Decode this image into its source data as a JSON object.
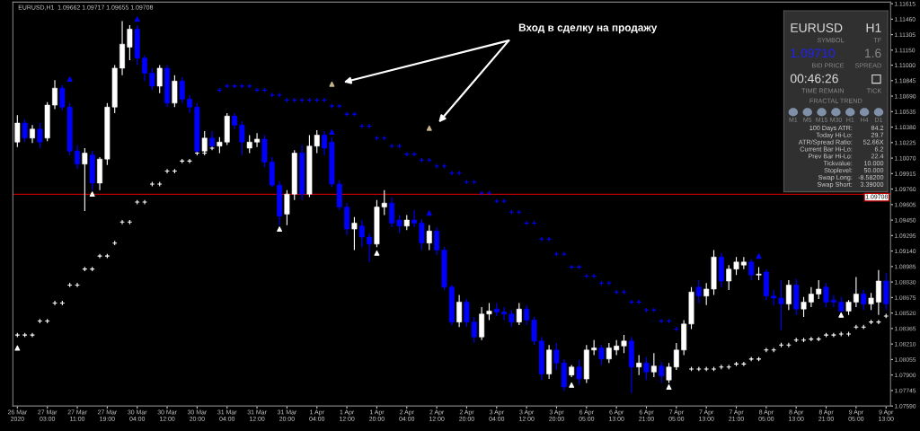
{
  "chart_data": [
    {
      "type": "candlestick",
      "title": "EURUSD,H1  1.09662 1.09717 1.09655 1.09708",
      "categories": [
        "26 Mar 2020",
        null,
        null,
        null,
        "27 Mar 03:00",
        null,
        null,
        null,
        "27 Mar 11:00",
        null,
        null,
        null,
        "27 Mar 19:00",
        null,
        null,
        null,
        "30 Mar 04:00",
        null,
        null,
        null,
        "30 Mar 12:00",
        null,
        null,
        null,
        "30 Mar 20:00",
        null,
        null,
        null,
        "31 Mar 04:00",
        null,
        null,
        null,
        "31 Mar 12:00",
        null,
        null,
        null,
        "31 Mar 20:00",
        null,
        null,
        null,
        "1 Apr 04:00",
        null,
        null,
        null,
        "1 Apr 12:00",
        null,
        null,
        null,
        "1 Apr 20:00",
        null,
        null,
        null,
        "2 Apr 04:00",
        null,
        null,
        null,
        "2 Apr 12:00",
        null,
        null,
        null,
        "2 Apr 20:00",
        null,
        null,
        null,
        "3 Apr 04:00",
        null,
        null,
        null,
        "3 Apr 12:00",
        null,
        null,
        null,
        "3 Apr 20:00",
        null,
        null,
        null,
        "6 Apr 05:00",
        null,
        null,
        null,
        "6 Apr 13:00",
        null,
        null,
        null,
        "6 Apr 21:00",
        null,
        null,
        null,
        "7 Apr 05:00",
        null,
        null,
        null,
        "7 Apr 13:00",
        null,
        null,
        null,
        "7 Apr 21:00",
        null,
        null,
        null,
        "8 Apr 05:00",
        null,
        null,
        null,
        "8 Apr 13:00",
        null,
        null,
        null,
        "8 Apr 21:00",
        null,
        null,
        null,
        "9 Apr 05:00",
        null,
        null,
        null,
        "9 Apr 13:00"
      ],
      "ohlc": [
        [
          1.1023,
          1.105,
          1.1018,
          1.1042
        ],
        [
          1.1042,
          1.1046,
          1.1023,
          1.1027
        ],
        [
          1.1027,
          1.104,
          1.1022,
          1.1036
        ],
        [
          1.1036,
          1.1042,
          1.1017,
          1.1023
        ],
        [
          1.1027,
          1.1063,
          1.1024,
          1.106
        ],
        [
          1.106,
          1.1085,
          1.1056,
          1.1077
        ],
        [
          1.1077,
          1.108,
          1.1055,
          1.1058
        ],
        [
          1.1058,
          1.1062,
          1.101,
          1.1014
        ],
        [
          1.1014,
          1.102,
          1.0996,
          1.1001
        ],
        [
          1.1001,
          1.1017,
          1.0954,
          1.1012
        ],
        [
          1.101,
          1.1014,
          1.0975,
          1.0982
        ],
        [
          1.0982,
          1.1008,
          1.0975,
          1.1006
        ],
        [
          1.1006,
          1.1062,
          1.1,
          1.1058
        ],
        [
          1.1058,
          1.11,
          1.1052,
          1.1097
        ],
        [
          1.1097,
          1.1144,
          1.109,
          1.1121
        ],
        [
          1.1118,
          1.114,
          1.1105,
          1.1136
        ],
        [
          1.1136,
          1.114,
          1.11,
          1.1107
        ],
        [
          1.1107,
          1.111,
          1.1084,
          1.1092
        ],
        [
          1.1092,
          1.1097,
          1.1075,
          1.1079
        ],
        [
          1.1079,
          1.11,
          1.1072,
          1.1097
        ],
        [
          1.1097,
          1.11,
          1.1058,
          1.1062
        ],
        [
          1.1062,
          1.109,
          1.1058,
          1.1084
        ],
        [
          1.1084,
          1.1088,
          1.1062,
          1.1066
        ],
        [
          1.1066,
          1.107,
          1.1052,
          1.1058
        ],
        [
          1.1058,
          1.1062,
          1.1013,
          1.1014
        ],
        [
          1.1014,
          1.1034,
          1.1013,
          1.1027
        ],
        [
          1.1027,
          1.1034,
          1.1018,
          1.1019
        ],
        [
          1.1019,
          1.1028,
          1.1012,
          1.1023
        ],
        [
          1.1023,
          1.1052,
          1.102,
          1.1049
        ],
        [
          1.1049,
          1.1052,
          1.1036,
          1.104
        ],
        [
          1.104,
          1.1044,
          1.101,
          1.1023
        ],
        [
          1.1017,
          1.103,
          1.1012,
          1.1023
        ],
        [
          1.1023,
          1.1032,
          1.1018,
          1.1026
        ],
        [
          1.1026,
          1.103,
          1.0998,
          1.1003
        ],
        [
          1.1003,
          1.1008,
          1.0978,
          1.098
        ],
        [
          1.098,
          1.0984,
          1.094,
          1.0949
        ],
        [
          1.0951,
          1.0975,
          1.094,
          1.0971
        ],
        [
          1.0971,
          1.1015,
          1.0965,
          1.1012
        ],
        [
          1.1012,
          1.102,
          1.0965,
          1.0971
        ],
        [
          1.0971,
          1.103,
          1.0968,
          1.1019
        ],
        [
          1.1019,
          1.1035,
          1.1012,
          1.103
        ],
        [
          1.103,
          1.1034,
          1.101,
          1.1017
        ],
        [
          1.1023,
          1.1028,
          1.0978,
          1.0981
        ],
        [
          1.0981,
          1.0985,
          1.0955,
          1.0958
        ],
        [
          1.0958,
          1.0962,
          1.093,
          1.0936
        ],
        [
          1.0936,
          1.0948,
          1.0915,
          1.0942
        ],
        [
          1.0939,
          1.0945,
          1.0918,
          1.0928
        ],
        [
          1.0928,
          1.0932,
          1.0903,
          1.0921
        ],
        [
          1.0921,
          1.0965,
          1.0918,
          1.0958
        ],
        [
          1.0958,
          1.0975,
          1.095,
          1.0962
        ],
        [
          1.0962,
          1.0968,
          1.0938,
          1.0942
        ],
        [
          1.0945,
          1.095,
          1.0932,
          1.0939
        ],
        [
          1.0939,
          1.095,
          1.0935,
          1.0945
        ],
        [
          1.0945,
          1.0955,
          1.0938,
          1.0942
        ],
        [
          1.0942,
          1.0946,
          1.0915,
          1.0922
        ],
        [
          1.0922,
          1.094,
          1.0915,
          1.0934
        ],
        [
          1.0934,
          1.0938,
          1.091,
          1.0915
        ],
        [
          1.0915,
          1.0918,
          1.0875,
          1.0878
        ],
        [
          1.0878,
          1.088,
          1.084,
          1.0843
        ],
        [
          1.0843,
          1.087,
          1.0838,
          1.0863
        ],
        [
          1.0863,
          1.0866,
          1.0838,
          1.0843
        ],
        [
          1.0843,
          1.0848,
          1.0822,
          1.0828
        ],
        [
          1.0828,
          1.0858,
          1.0825,
          1.0851
        ],
        [
          1.0851,
          1.0862,
          1.0845,
          1.0854
        ],
        [
          1.0856,
          1.0862,
          1.0849,
          1.0853
        ],
        [
          1.0853,
          1.0858,
          1.0845,
          1.0851
        ],
        [
          1.0851,
          1.0855,
          1.0838,
          1.0843
        ],
        [
          1.0843,
          1.0862,
          1.084,
          1.0856
        ],
        [
          1.0856,
          1.086,
          1.084,
          1.0845
        ],
        [
          1.0845,
          1.0848,
          1.082,
          1.0824
        ],
        [
          1.0824,
          1.0828,
          1.0785,
          1.0791
        ],
        [
          1.0791,
          1.082,
          1.0786,
          1.0815
        ],
        [
          1.0815,
          1.0822,
          1.0795,
          1.0802
        ],
        [
          1.0802,
          1.0806,
          1.0774,
          1.0778
        ],
        [
          1.079,
          1.08,
          1.0788,
          1.0798
        ],
        [
          1.0798,
          1.0805,
          1.078,
          1.0786
        ],
        [
          1.0786,
          1.082,
          1.0782,
          1.0815
        ],
        [
          1.0815,
          1.0825,
          1.081,
          1.0817
        ],
        [
          1.0817,
          1.082,
          1.08,
          1.0806
        ],
        [
          1.0806,
          1.0822,
          1.0802,
          1.0817
        ],
        [
          1.0815,
          1.0825,
          1.081,
          1.0819
        ],
        [
          1.0819,
          1.083,
          1.0812,
          1.0824
        ],
        [
          1.0824,
          1.0828,
          1.0772,
          1.0798
        ],
        [
          1.0798,
          1.081,
          1.079,
          1.0802
        ],
        [
          1.0802,
          1.0808,
          1.0785,
          1.0793
        ],
        [
          1.0793,
          1.0812,
          1.0788,
          1.0799
        ],
        [
          1.0799,
          1.0803,
          1.0782,
          1.0789
        ],
        [
          1.0785,
          1.0802,
          1.0782,
          1.0798
        ],
        [
          1.0798,
          1.0822,
          1.0795,
          1.0815
        ],
        [
          1.0815,
          1.0845,
          1.081,
          1.0841
        ],
        [
          1.0841,
          1.0878,
          1.0836,
          1.0873
        ],
        [
          1.0878,
          1.0885,
          1.0862,
          1.0869
        ],
        [
          1.0869,
          1.0882,
          1.086,
          1.0876
        ],
        [
          1.0876,
          1.0915,
          1.087,
          1.0908
        ],
        [
          1.0908,
          1.0912,
          1.0878,
          1.0884
        ],
        [
          1.0884,
          1.09,
          1.0875,
          1.0896
        ],
        [
          1.0896,
          1.0908,
          1.089,
          1.0903
        ],
        [
          1.09,
          1.0908,
          1.0896,
          1.0903
        ],
        [
          1.0903,
          1.0906,
          1.0885,
          1.089
        ],
        [
          1.089,
          1.0898,
          1.0885,
          1.0891
        ],
        [
          1.0893,
          1.0896,
          1.0865,
          1.0869
        ],
        [
          1.0869,
          1.0875,
          1.086,
          1.0867
        ],
        [
          1.0867,
          1.0885,
          1.0835,
          1.0861
        ],
        [
          1.0861,
          1.0885,
          1.0855,
          1.088
        ],
        [
          1.088,
          1.0886,
          1.085,
          1.0856
        ],
        [
          1.0856,
          1.0868,
          1.0848,
          1.0863
        ],
        [
          1.0863,
          1.0878,
          1.0858,
          1.0871
        ],
        [
          1.0871,
          1.0885,
          1.0866,
          1.0876
        ],
        [
          1.0878,
          1.0882,
          1.0858,
          1.0863
        ],
        [
          1.0865,
          1.087,
          1.0858,
          1.0863
        ],
        [
          1.0863,
          1.0868,
          1.0853,
          1.0854
        ],
        [
          1.0854,
          1.0865,
          1.085,
          1.0863
        ],
        [
          1.0863,
          1.0888,
          1.0858,
          1.0871
        ],
        [
          1.0871,
          1.0875,
          1.0855,
          1.0861
        ],
        [
          1.0861,
          1.0872,
          1.0855,
          1.0867
        ],
        [
          1.0863,
          1.0895,
          1.085,
          1.0884
        ],
        [
          1.0884,
          1.0892,
          1.0855,
          1.0861
        ]
      ],
      "colors": [
        "#ffffff",
        "#0000ff",
        "#ffffff",
        "#0000ff",
        "#ffffff",
        "#ffffff",
        "#0000ff",
        "#0000ff",
        "#0000ff",
        "#ffffff",
        "#0000ff",
        "#ffffff",
        "#ffffff",
        "#ffffff",
        "#ffffff",
        "#ffffff",
        "#0000ff",
        "#0000ff",
        "#0000ff",
        "#ffffff",
        "#0000ff",
        "#ffffff",
        "#0000ff",
        "#0000ff",
        "#0000ff",
        "#ffffff",
        "#0000ff",
        "#ffffff",
        "#ffffff",
        "#0000ff",
        "#0000ff",
        "#ffffff",
        "#ffffff",
        "#0000ff",
        "#0000ff",
        "#0000ff",
        "#ffffff",
        "#ffffff",
        "#0000ff",
        "#ffffff",
        "#ffffff",
        "#0000ff",
        "#0000ff",
        "#0000ff",
        "#0000ff",
        "#ffffff",
        "#0000ff",
        "#0000ff",
        "#ffffff",
        "#ffffff",
        "#0000ff",
        "#0000ff",
        "#ffffff",
        "#0000ff",
        "#0000ff",
        "#ffffff",
        "#0000ff",
        "#0000ff",
        "#0000ff",
        "#ffffff",
        "#0000ff",
        "#0000ff",
        "#ffffff",
        "#ffffff",
        "#0000ff",
        "#0000ff",
        "#0000ff",
        "#ffffff",
        "#0000ff",
        "#0000ff",
        "#0000ff",
        "#ffffff",
        "#0000ff",
        "#0000ff",
        "#ffffff",
        "#0000ff",
        "#ffffff",
        "#ffffff",
        "#0000ff",
        "#ffffff",
        "#ffffff",
        "#ffffff",
        "#0000ff",
        "#ffffff",
        "#0000ff",
        "#ffffff",
        "#0000ff",
        "#ffffff",
        "#ffffff",
        "#ffffff",
        "#ffffff",
        "#0000ff",
        "#ffffff",
        "#ffffff",
        "#0000ff",
        "#ffffff",
        "#ffffff",
        "#ffffff",
        "#0000ff",
        "#ffffff",
        "#0000ff",
        "#0000ff",
        "#0000ff",
        "#ffffff",
        "#0000ff",
        "#ffffff",
        "#ffffff",
        "#ffffff",
        "#0000ff",
        "#0000ff",
        "#0000ff",
        "#ffffff",
        "#ffffff",
        "#0000ff",
        "#ffffff",
        "#ffffff",
        "#0000ff"
      ],
      "series": [
        {
          "type": "scatter",
          "color": "#ffffff",
          "marker": "cross",
          "values": [
            1.083,
            1.083,
            1.083,
            1.0844,
            1.0844,
            1.0862,
            1.0862,
            1.088,
            1.088,
            1.0896,
            1.0896,
            1.0909,
            1.0909,
            1.0922,
            1.0943,
            1.0943,
            1.0963,
            1.0963,
            1.0981,
            1.0981,
            1.0994,
            1.0994,
            1.1004,
            1.1004,
            1.1012,
            1.1012,
            1.1017,
            null,
            null,
            null,
            null,
            null,
            null,
            null,
            null,
            null,
            null,
            null,
            null,
            null,
            null,
            null,
            null,
            null,
            null,
            null,
            null,
            null,
            null,
            null,
            null,
            null,
            null,
            null,
            null,
            null,
            null,
            null,
            null,
            null,
            null,
            null,
            null,
            null,
            null,
            null,
            null,
            null,
            null,
            null,
            null,
            null,
            null,
            null,
            null,
            null,
            null,
            null,
            null,
            null,
            null,
            null,
            null,
            null,
            null,
            null,
            null,
            null,
            null,
            null,
            1.0796,
            1.0796,
            1.0796,
            1.0796,
            1.0798,
            1.0798,
            1.0801,
            1.0801,
            1.0806,
            1.0806,
            1.0815,
            1.0815,
            1.082,
            1.082,
            1.0825,
            1.0825,
            1.0826,
            1.0826,
            1.083,
            1.083,
            1.0831,
            1.0831,
            1.0838,
            1.0838,
            1.0843,
            1.0843,
            1.0849
          ]
        },
        {
          "type": "scatter",
          "color": "#0000ff",
          "marker": "cross",
          "values": [
            null,
            null,
            null,
            null,
            null,
            null,
            null,
            null,
            null,
            null,
            null,
            null,
            null,
            null,
            null,
            null,
            null,
            null,
            null,
            null,
            null,
            null,
            null,
            null,
            null,
            null,
            null,
            1.1075,
            1.1079,
            1.1079,
            1.1079,
            1.1079,
            1.1075,
            1.1075,
            1.107,
            1.107,
            1.1065,
            1.1065,
            1.1065,
            1.1065,
            1.1065,
            1.1065,
            1.1059,
            1.1059,
            1.1051,
            1.1051,
            1.1039,
            1.1039,
            1.1027,
            1.1027,
            1.1019,
            1.1019,
            1.1011,
            1.1011,
            1.1005,
            1.1005,
            1.0999,
            1.0999,
            1.0992,
            1.0992,
            1.0983,
            1.0983,
            1.0972,
            1.0972,
            1.0964,
            1.0964,
            1.0953,
            1.0953,
            1.0942,
            1.0942,
            1.0926,
            1.0926,
            1.0911,
            1.0911,
            1.0898,
            1.0898,
            1.0889,
            1.0889,
            1.0882,
            1.0882,
            1.0873,
            1.0873,
            1.0863,
            1.0863,
            1.0855,
            1.0855,
            1.0844,
            1.0844,
            1.0836,
            null,
            null,
            null,
            null,
            null,
            null,
            null,
            null,
            null,
            null,
            null,
            null,
            null,
            null,
            null,
            null,
            null,
            null,
            null,
            null,
            null,
            null,
            null,
            null,
            null,
            null,
            null,
            null
          ]
        },
        {
          "type": "scatter",
          "color": "#ffffff",
          "marker": "triangle",
          "values": [
            1.0817,
            null,
            null,
            null,
            null,
            null,
            null,
            null,
            null,
            null,
            1.0971,
            null,
            null,
            null,
            null,
            null,
            null,
            null,
            null,
            null,
            null,
            null,
            null,
            null,
            null,
            null,
            null,
            null,
            null,
            null,
            null,
            null,
            null,
            null,
            null,
            1.0936,
            null,
            null,
            null,
            null,
            null,
            null,
            null,
            null,
            null,
            null,
            null,
            null,
            1.0912,
            null,
            null,
            null,
            null,
            null,
            null,
            null,
            null,
            null,
            null,
            null,
            null,
            null,
            null,
            null,
            null,
            null,
            null,
            null,
            null,
            null,
            null,
            null,
            null,
            null,
            1.078,
            null,
            null,
            null,
            null,
            null,
            null,
            null,
            null,
            null,
            null,
            null,
            null,
            1.0778,
            null,
            null,
            null,
            null,
            null,
            null,
            null,
            null,
            null,
            null,
            null,
            null,
            null,
            null,
            null,
            null,
            null,
            null,
            null,
            null,
            null,
            null,
            1.085,
            null,
            null,
            null,
            null,
            null,
            null
          ]
        },
        {
          "type": "scatter",
          "color": "#0000ff",
          "marker": "triangle",
          "values": [
            null,
            null,
            null,
            null,
            null,
            null,
            null,
            1.1086,
            null,
            null,
            null,
            null,
            null,
            null,
            null,
            null,
            1.1146,
            null,
            null,
            null,
            null,
            null,
            null,
            null,
            null,
            null,
            null,
            null,
            null,
            null,
            null,
            null,
            null,
            null,
            null,
            null,
            null,
            null,
            null,
            null,
            null,
            null,
            1.1033,
            null,
            null,
            null,
            null,
            null,
            null,
            null,
            null,
            null,
            null,
            null,
            null,
            1.0952,
            null,
            null,
            null,
            null,
            null,
            null,
            null,
            null,
            null,
            null,
            null,
            null,
            null,
            null,
            null,
            null,
            null,
            null,
            null,
            null,
            null,
            null,
            null,
            null,
            null,
            null,
            null,
            null,
            null,
            null,
            null,
            null,
            null,
            null,
            null,
            null,
            null,
            null,
            null,
            null,
            null,
            null,
            null,
            1.0909,
            null,
            null,
            null,
            null,
            null,
            null,
            null,
            null,
            null,
            null,
            null,
            null,
            null,
            null,
            null,
            null,
            null
          ]
        },
        {
          "type": "scatter",
          "color": "#c8b48c",
          "marker": "triangle",
          "values": [
            null,
            null,
            null,
            null,
            null,
            null,
            null,
            null,
            null,
            null,
            null,
            null,
            null,
            null,
            null,
            null,
            null,
            null,
            null,
            null,
            null,
            null,
            null,
            null,
            null,
            null,
            null,
            null,
            null,
            null,
            null,
            null,
            null,
            null,
            null,
            null,
            null,
            null,
            null,
            null,
            null,
            null,
            1.1081,
            null,
            null,
            null,
            null,
            null,
            null,
            null,
            null,
            null,
            null,
            null,
            null,
            1.1037,
            null,
            null,
            null,
            null,
            null,
            null,
            null,
            null,
            null,
            null,
            null,
            null,
            null,
            null,
            null,
            null,
            null,
            null,
            null,
            null,
            null,
            null,
            null,
            null,
            null,
            null,
            null,
            null,
            null,
            null,
            null,
            null,
            null,
            null,
            null,
            null,
            null,
            null,
            null,
            null,
            null,
            null,
            null,
            null,
            null,
            null,
            null,
            null,
            null,
            null,
            null,
            null,
            null,
            null,
            null,
            null,
            null,
            null,
            null,
            null,
            null
          ]
        }
      ],
      "ylim": [
        1.0759,
        1.1163
      ],
      "yticks": [
        1.11615,
        {
          "value": 1.1146,
          "label": "1.11460"
        },
        1.11305,
        {
          "value": 1.1115,
          "label": "1.11150"
        },
        {
          "value": 1.11,
          "label": "1.11000"
        },
        1.10845,
        {
          "value": 1.1069,
          "label": "1.10690"
        },
        1.10535,
        {
          "value": 1.1038,
          "label": "1.10380"
        },
        1.10225,
        {
          "value": 1.1007,
          "label": "1.10070"
        },
        1.09915,
        {
          "value": 1.0976,
          "label": "1.09760"
        },
        1.09605,
        {
          "value": 1.0945,
          "label": "1.09450"
        },
        1.09295,
        {
          "value": 1.0914,
          "label": "1.09140"
        },
        1.08985,
        {
          "value": 1.0883,
          "label": "1.08830"
        },
        1.08675,
        {
          "value": 1.0852,
          "label": "1.08520"
        },
        1.08365,
        {
          "value": 1.0821,
          "label": "1.08210"
        },
        1.08055,
        {
          "value": 1.079,
          "label": "1.07900"
        },
        1.07745,
        {
          "value": 1.0759,
          "label": "1.07590"
        }
      ],
      "ref_lines": [
        {
          "axis": "y",
          "value": 1.09708,
          "label": "1.09708",
          "color": "#c00000"
        }
      ],
      "annotations": [
        "Вход в сделку на продажу"
      ]
    },
    {
      "type": "other",
      "annotations": [
        "EURUSD",
        "H1",
        "SYMBOL",
        "TF",
        "1.09710",
        "1.6",
        "BID PRICE",
        "SPREAD",
        "00:46:26",
        "TIME REMAIN",
        "TICK",
        "FRACTAL TREND",
        "M1",
        "M5",
        "M15",
        "M30",
        "H1",
        "H4",
        "D1",
        "100 Days ATR:",
        "84.2",
        "Today Hi-Lo:",
        "29.7",
        "ATR/Spread Ratio:",
        "52.66X",
        "Current Bar Hi-Lo:",
        "6.2",
        "Prev Bar Hi-Lo:",
        "22.4",
        "Tickvalue:",
        "10.000",
        "Stoplevel:",
        "50.000",
        "Swap Long:",
        "-8.58200",
        "Swap Short:",
        "3.39000"
      ]
    }
  ]
}
